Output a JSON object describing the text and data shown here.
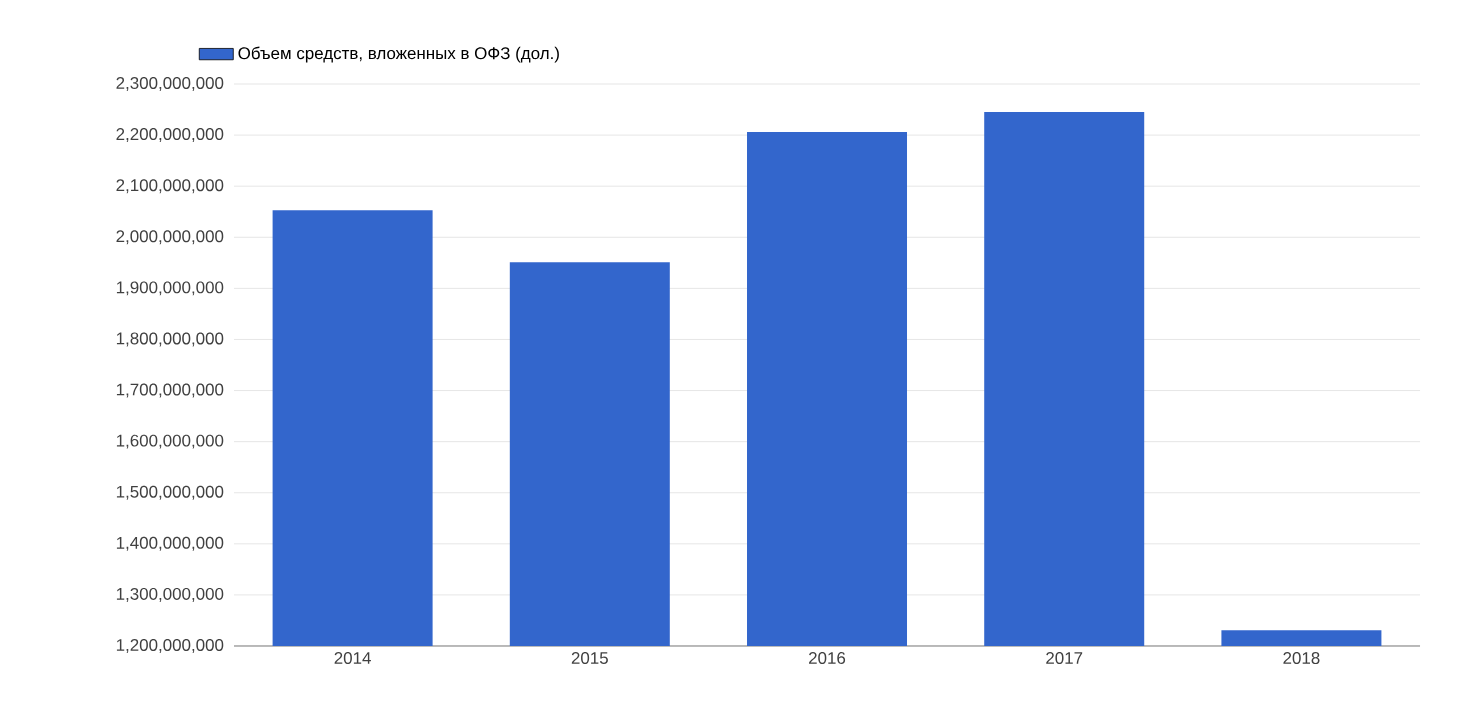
{
  "chart_data": {
    "type": "bar",
    "categories": [
      "2014",
      "2015",
      "2016",
      "2017",
      "2018"
    ],
    "series": [
      {
        "name": "Объем средств, вложенных в ОФЗ (дол.)",
        "color": "#3366cc",
        "values": [
          2053000000,
          1951000000,
          2206000000,
          2245000000,
          1231000000
        ]
      }
    ],
    "ylim": [
      1200000000,
      2300000000
    ],
    "yticks": [
      {
        "value": 1200000000,
        "label": "1,200,000,000"
      },
      {
        "value": 1300000000,
        "label": "1,300,000,000"
      },
      {
        "value": 1400000000,
        "label": "1,400,000,000"
      },
      {
        "value": 1500000000,
        "label": "1,500,000,000"
      },
      {
        "value": 1600000000,
        "label": "1,600,000,000"
      },
      {
        "value": 1700000000,
        "label": "1,700,000,000"
      },
      {
        "value": 1800000000,
        "label": "1,800,000,000"
      },
      {
        "value": 1900000000,
        "label": "1,900,000,000"
      },
      {
        "value": 2000000000,
        "label": "2,000,000,000"
      },
      {
        "value": 2100000000,
        "label": "2,100,000,000"
      },
      {
        "value": 2200000000,
        "label": "2,200,000,000"
      },
      {
        "value": 2300000000,
        "label": "2,300,000,000"
      }
    ],
    "grid": "y",
    "legend": "top left"
  }
}
